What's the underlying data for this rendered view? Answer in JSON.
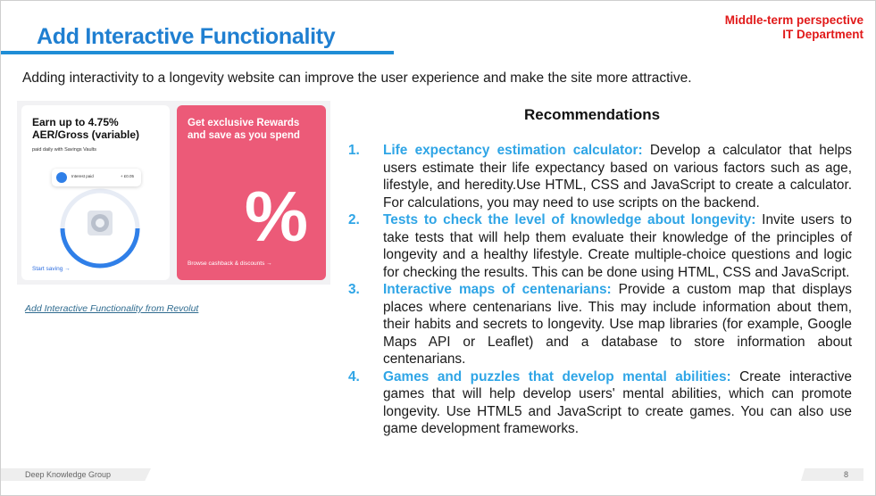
{
  "header": {
    "title": "Add Interactive Functionality",
    "perspective": "Middle-term perspective",
    "department": "IT Department"
  },
  "intro": "Adding interactivity to a longevity website can improve the user experience and make the site more attractive.",
  "image": {
    "left_card": {
      "heading_line1": "Earn up to 4.75%",
      "heading_line2": "AER/Gross (variable)",
      "subtext": "paid daily with Savings Vaults",
      "pill_label": "Interest paid",
      "pill_value": "+ £0.05",
      "link": "Start saving →"
    },
    "right_card": {
      "heading_line1": "Get exclusive Rewards",
      "heading_line2": "and save as you spend",
      "symbol": "%",
      "link": "Browse cashback & discounts →"
    },
    "caption": "Add Interactive Functionality from Revolut"
  },
  "recommendations": {
    "title": "Recommendations",
    "items": [
      {
        "number": "1.",
        "heading": "Life expectancy estimation calculator:",
        "text": " Develop a calculator that helps users estimate their life expectancy based on various factors such as age, lifestyle, and heredity.Use HTML, CSS and JavaScript to create a calculator. For calculations, you may need to use scripts on the backend."
      },
      {
        "number": "2.",
        "heading": "Tests to check the level of knowledge about longevity:",
        "text": " Invite users to take tests that will help them evaluate their knowledge of the principles of longevity and a healthy lifestyle. Create multiple-choice questions and logic for checking the results. This can be done using HTML, CSS and JavaScript."
      },
      {
        "number": "3.",
        "heading": "Interactive maps of centenarians:",
        "text": " Provide a custom map that displays places where centenarians live. This may include information about them, their habits and secrets to longevity. Use map libraries (for example, Google Maps API or Leaflet) and a database to store information about centenarians."
      },
      {
        "number": "4.",
        "heading": "Games and puzzles that develop mental abilities:",
        "text": " Create interactive games that will help develop users' mental abilities, which can promote longevity. Use HTML5 and JavaScript to create games. You can also use game development frameworks."
      }
    ]
  },
  "footer": {
    "organization": "Deep Knowledge Group",
    "page_number": "8"
  },
  "colors": {
    "title_blue": "#1f7fd1",
    "accent_red": "#e11919",
    "list_blue": "#2fa5e6",
    "card_pink": "#ec5a78"
  }
}
